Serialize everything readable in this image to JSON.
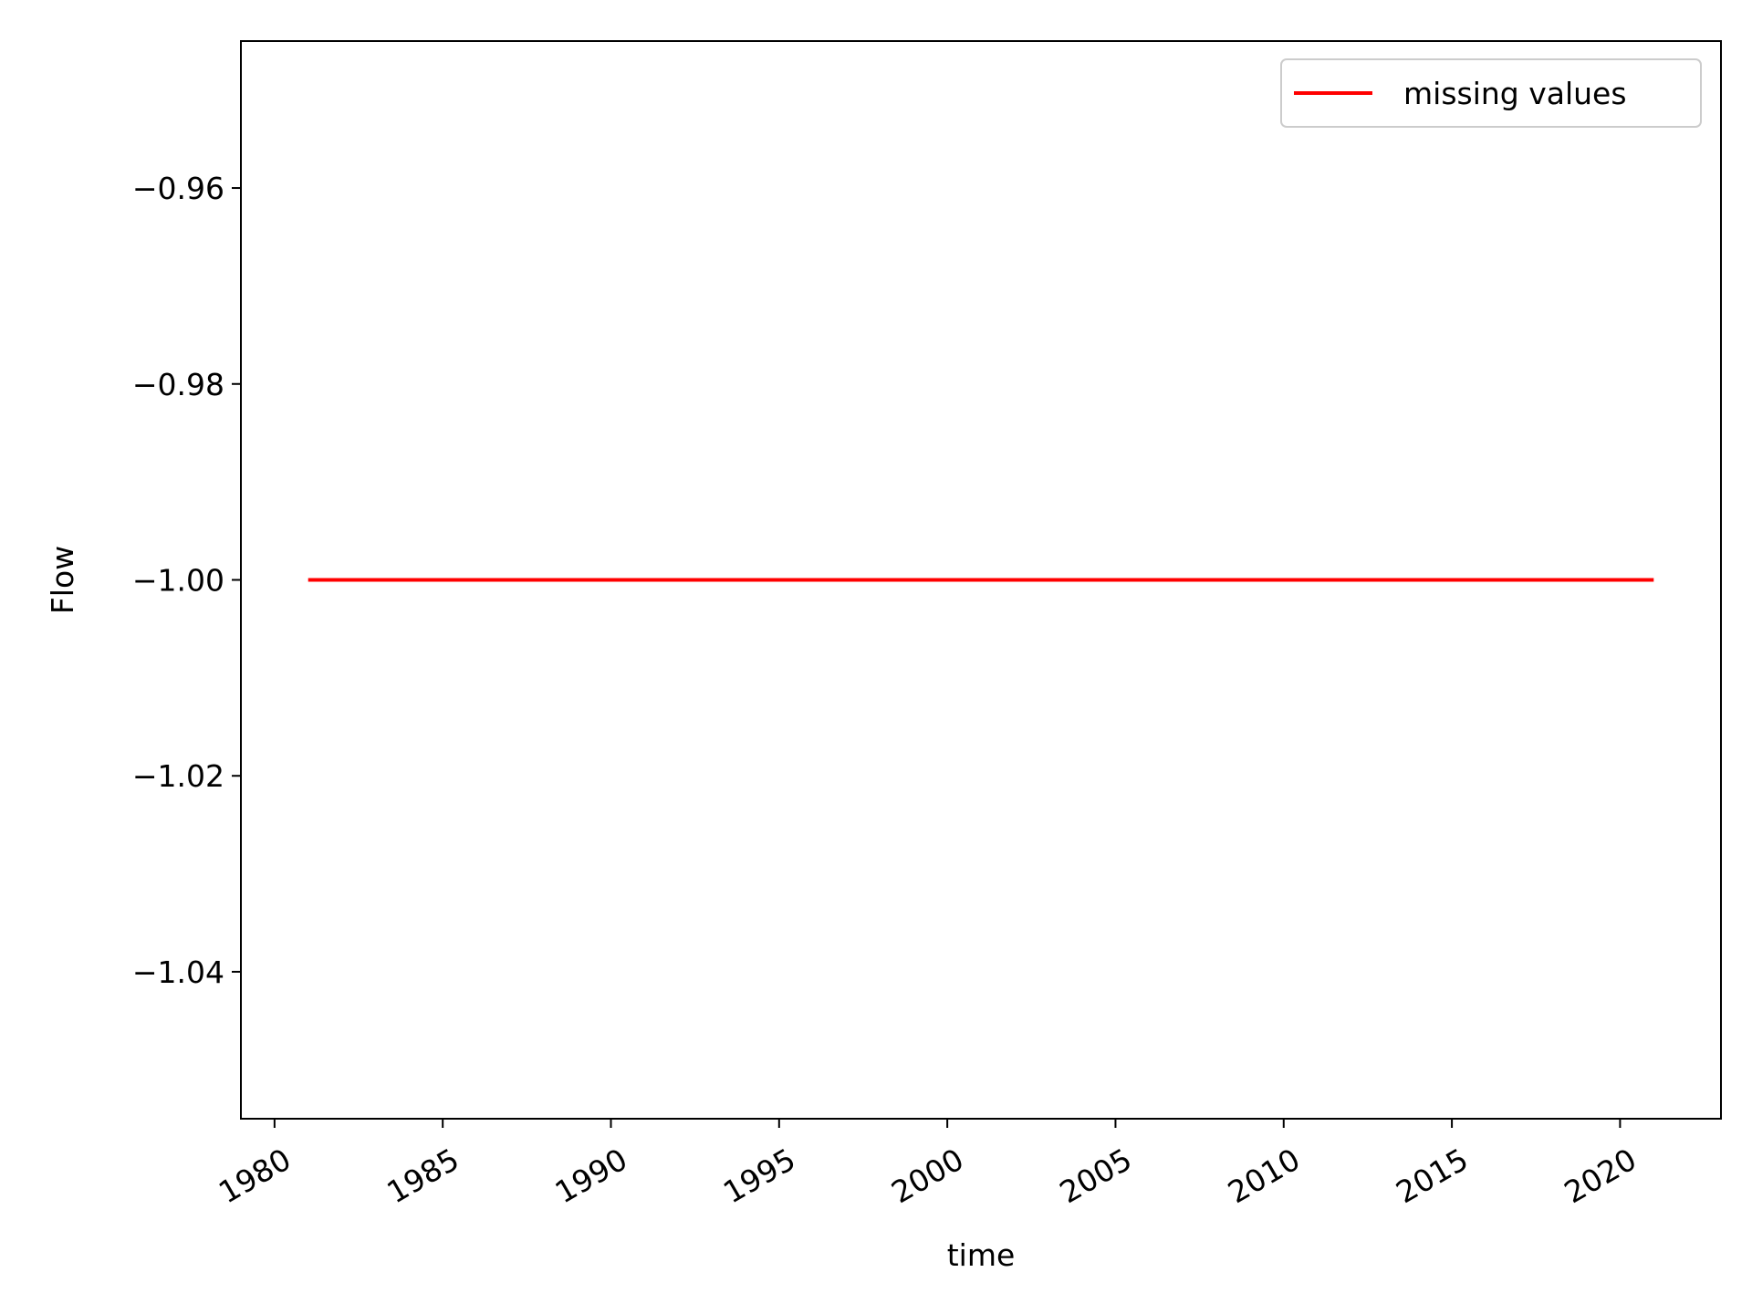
{
  "chart_data": {
    "type": "line",
    "title": "",
    "xlabel": "time",
    "ylabel": "Flow",
    "xlim": [
      1979,
      2023
    ],
    "ylim": [
      -1.055,
      -0.945
    ],
    "x_ticks": [
      1980,
      1985,
      1990,
      1995,
      2000,
      2005,
      2010,
      2015,
      2020
    ],
    "x_tick_labels": [
      "1980",
      "1985",
      "1990",
      "1995",
      "2000",
      "2005",
      "2010",
      "2015",
      "2020"
    ],
    "y_ticks": [
      -0.96,
      -0.98,
      -1.0,
      -1.02,
      -1.04
    ],
    "y_tick_labels": [
      "−0.96",
      "−0.98",
      "−1.00",
      "−1.02",
      "−1.04"
    ],
    "grid": false,
    "legend_position": "top-right",
    "series": [
      {
        "name": "missing values",
        "color": "#ff0000",
        "x": [
          1981,
          2021
        ],
        "y": [
          -1.0,
          -1.0
        ]
      }
    ]
  }
}
